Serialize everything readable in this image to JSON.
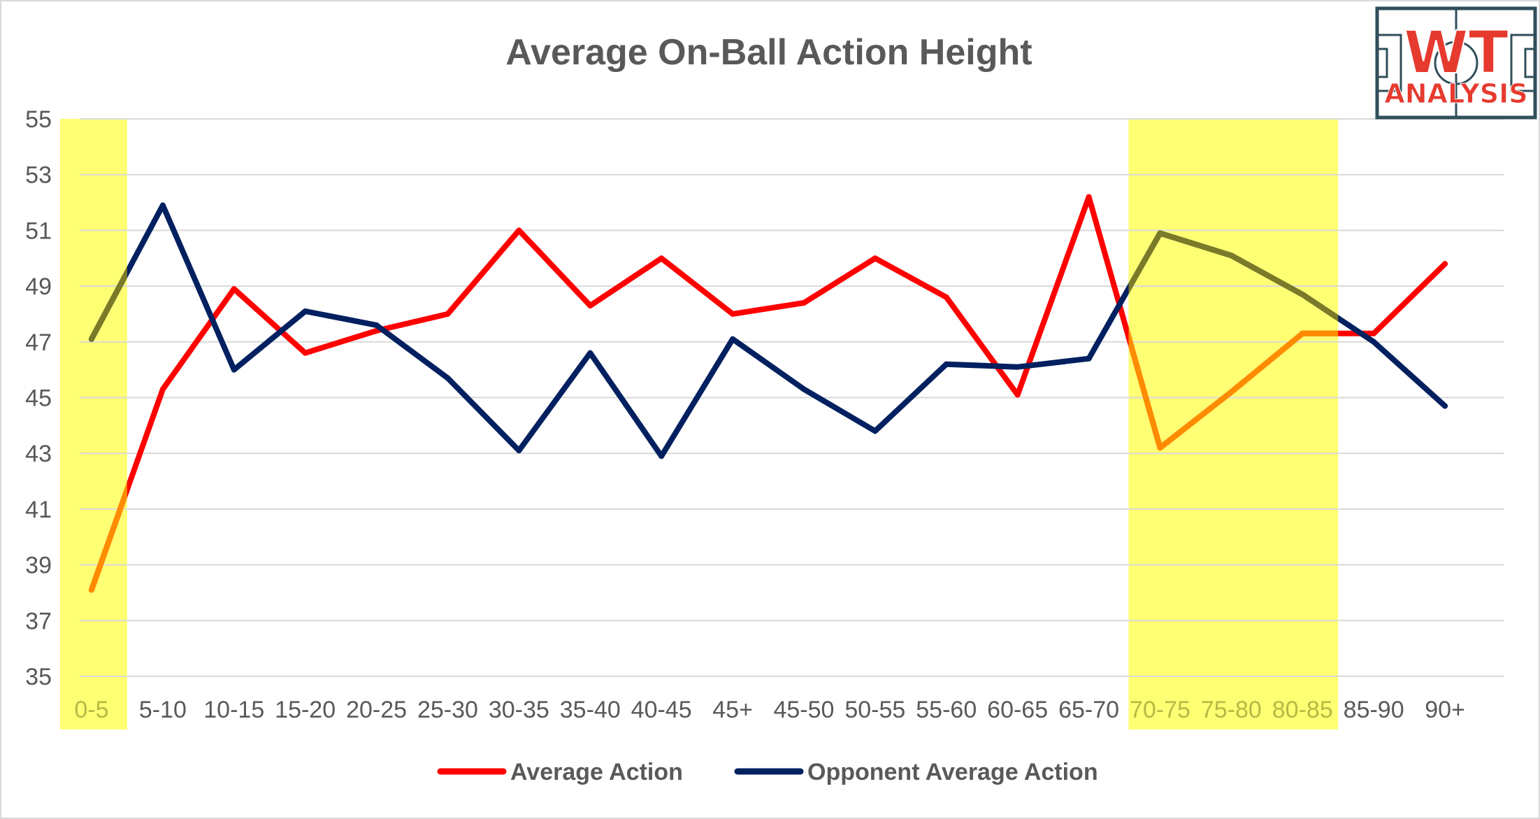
{
  "chart_data": {
    "type": "line",
    "title": "Average On-Ball Action Height",
    "xlabel": "",
    "ylabel": "",
    "ylim": [
      35,
      55
    ],
    "y_ticks": [
      "35",
      "37",
      "39",
      "41",
      "43",
      "45",
      "47",
      "49",
      "51",
      "53",
      "55"
    ],
    "categories": [
      "0-5",
      "5-10",
      "10-15",
      "15-20",
      "20-25",
      "25-30",
      "30-35",
      "35-40",
      "40-45",
      "45+",
      "45-50",
      "50-55",
      "55-60",
      "60-65",
      "65-70",
      "70-75",
      "75-80",
      "80-85",
      "85-90",
      "90+"
    ],
    "highlighted_categories": [
      "0-5",
      "70-75",
      "75-80",
      "80-85"
    ],
    "grid": true,
    "legend_position": "bottom",
    "series": [
      {
        "name": "Average Action",
        "color": "#ff0000",
        "values": [
          38.1,
          45.3,
          48.9,
          46.6,
          47.4,
          48.0,
          51.0,
          48.3,
          50.0,
          48.0,
          48.4,
          50.0,
          48.6,
          45.1,
          52.2,
          43.2,
          45.2,
          47.3,
          47.3,
          49.8
        ]
      },
      {
        "name": "Opponent Average Action",
        "color": "#002060",
        "values": [
          47.1,
          51.9,
          46.0,
          48.1,
          47.6,
          45.7,
          43.1,
          46.6,
          42.9,
          47.1,
          45.3,
          43.8,
          46.2,
          46.1,
          46.4,
          50.9,
          50.1,
          48.7,
          47.0,
          44.7
        ]
      }
    ]
  },
  "logo": {
    "top_text": "WT",
    "bottom_text": "ANALYSIS",
    "accent_color": "#e63a2e",
    "outline_color": "#2f4f5a"
  }
}
